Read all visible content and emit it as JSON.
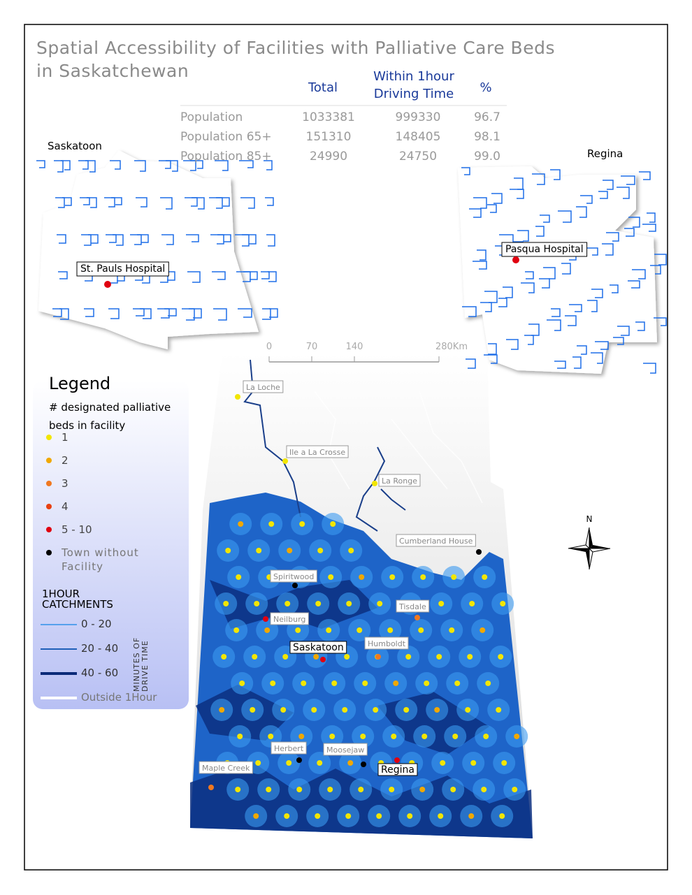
{
  "title": "Spatial Accessibility of Facilities with Palliative Care Beds in Saskatchewan",
  "table": {
    "header": [
      "Total",
      "Within 1hour Driving Time",
      "%"
    ],
    "rows": [
      [
        "Population",
        "1033381",
        "999330",
        "96.7"
      ],
      [
        "Population 65+",
        "151310",
        "148405",
        "98.1"
      ],
      [
        "Population 85+",
        "24990",
        "24750",
        "99.0"
      ]
    ]
  },
  "insets": [
    {
      "city": "Saskatoon",
      "hospital": "St. Pauls Hospital"
    },
    {
      "city": "Regina",
      "hospital": "Pasqua Hospital"
    }
  ],
  "scale": [
    "0",
    "70",
    "140",
    "280Km"
  ],
  "north": "N",
  "places": [
    "La Loche",
    "Ile a La Crosse",
    "La Ronge",
    "Cumberland House",
    "Spiritwood",
    "Tisdale",
    "Neilburg",
    "Saskatoon",
    "Humboldt",
    "Herbert",
    "Moosejaw",
    "Regina",
    "Maple Creek"
  ],
  "legend": {
    "title": "Legend",
    "subtitle": "# designated palliative beds in facility",
    "beds": [
      {
        "label": "1",
        "color": "#f2e600"
      },
      {
        "label": "2",
        "color": "#f0a800"
      },
      {
        "label": "3",
        "color": "#f07820"
      },
      {
        "label": "4",
        "color": "#e84010"
      },
      {
        "label": "5 - 10",
        "color": "#e00010"
      },
      {
        "label": "Town without Facility",
        "color": "#000000"
      }
    ],
    "catchments_title": "1HOUR CATCHMENTS",
    "catchments": [
      {
        "label": "0 - 20",
        "color": "#2f8fe8"
      },
      {
        "label": "20 - 40",
        "color": "#1f5fb8"
      },
      {
        "label": "40 - 60",
        "color": "#0a2a78"
      },
      {
        "label": "Outside 1Hour",
        "color": "#ffffff"
      }
    ],
    "axis_label": "MINUTES OF DRIVE TIME"
  }
}
